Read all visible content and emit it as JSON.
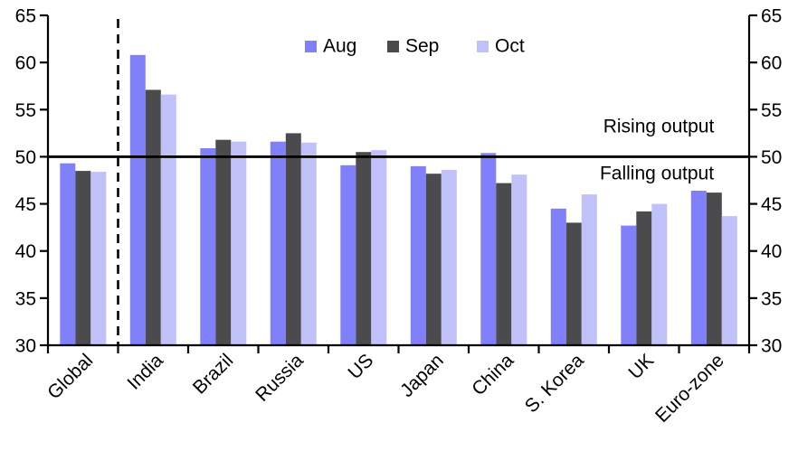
{
  "chart_data": {
    "type": "bar",
    "title": "",
    "xlabel": "",
    "ylabel": "",
    "categories": [
      "Global",
      "India",
      "Brazil",
      "Russia",
      "US",
      "Japan",
      "China",
      "S. Korea",
      "UK",
      "Euro-zone"
    ],
    "series": [
      {
        "name": "Aug",
        "color": "#8081fa",
        "values": [
          49.3,
          60.8,
          50.9,
          51.6,
          49.1,
          49.0,
          50.4,
          44.5,
          42.7,
          46.4
        ]
      },
      {
        "name": "Sep",
        "color": "#4b4b4d",
        "values": [
          48.5,
          57.1,
          51.8,
          52.5,
          50.5,
          48.2,
          47.2,
          43.0,
          44.2,
          46.2
        ]
      },
      {
        "name": "Oct",
        "color": "#c1c1fa",
        "values": [
          48.4,
          56.6,
          51.6,
          51.5,
          50.7,
          48.6,
          48.1,
          46.0,
          45.0,
          43.7
        ]
      }
    ],
    "ylim": [
      30,
      65
    ],
    "ytick_step": 5,
    "y_axis_sides": [
      "left",
      "right"
    ],
    "grid": false,
    "legend_position": "top",
    "reference_line": {
      "value": 50
    },
    "separator_dashed_after_category": "Global",
    "annotations": [
      {
        "text": "Rising output",
        "position": "above-reference-line"
      },
      {
        "text": "Falling output",
        "position": "below-reference-line"
      }
    ],
    "axis_color": "#000000",
    "annotation_color": "#000000"
  }
}
